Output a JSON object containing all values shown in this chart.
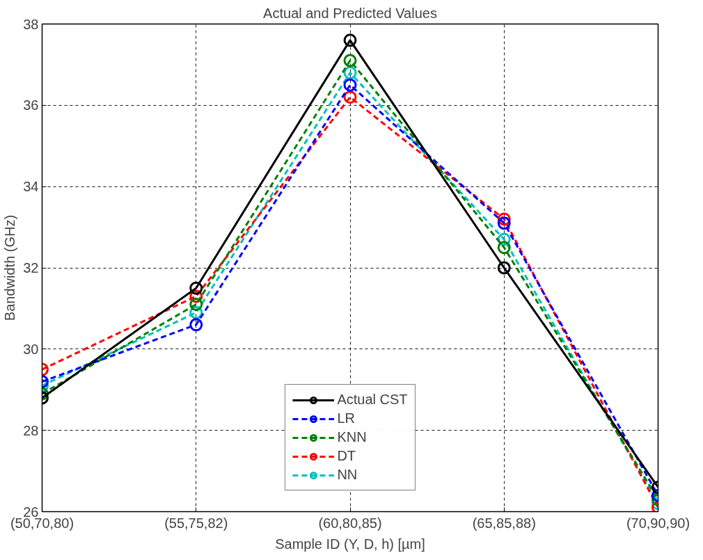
{
  "chart_data": {
    "type": "line",
    "title": "Actual and Predicted Values",
    "xlabel": "Sample ID (Y, D, h) [µm]",
    "ylabel": "Bandwidth (GHz)",
    "categories": [
      "(50,70,80)",
      "(55,75,82)",
      "(60,80,85)",
      "(65,85,88)",
      "(70,90,90)"
    ],
    "ylim": [
      26,
      38
    ],
    "yticks": [
      26,
      28,
      30,
      32,
      34,
      36,
      38
    ],
    "grid": true,
    "legend": "bottom",
    "marker": "circle",
    "series": [
      {
        "name": "Actual CST",
        "color": "#000000",
        "line_style": "solid",
        "values": [
          28.8,
          31.5,
          37.6,
          32.0,
          26.6
        ]
      },
      {
        "name": "LR",
        "color": "#0000ff",
        "line_style": "dashed",
        "values": [
          29.2,
          30.6,
          36.5,
          33.1,
          26.4
        ]
      },
      {
        "name": "KNN",
        "color": "#008000",
        "line_style": "dashed",
        "values": [
          28.9,
          31.1,
          37.1,
          32.5,
          26.3
        ]
      },
      {
        "name": "DT",
        "color": "#ff0000",
        "line_style": "dashed",
        "values": [
          29.5,
          31.3,
          36.2,
          33.2,
          26.1
        ]
      },
      {
        "name": "NN",
        "color": "#00bfbf",
        "line_style": "dashed",
        "values": [
          29.1,
          30.9,
          36.8,
          32.7,
          26.2
        ]
      }
    ]
  }
}
